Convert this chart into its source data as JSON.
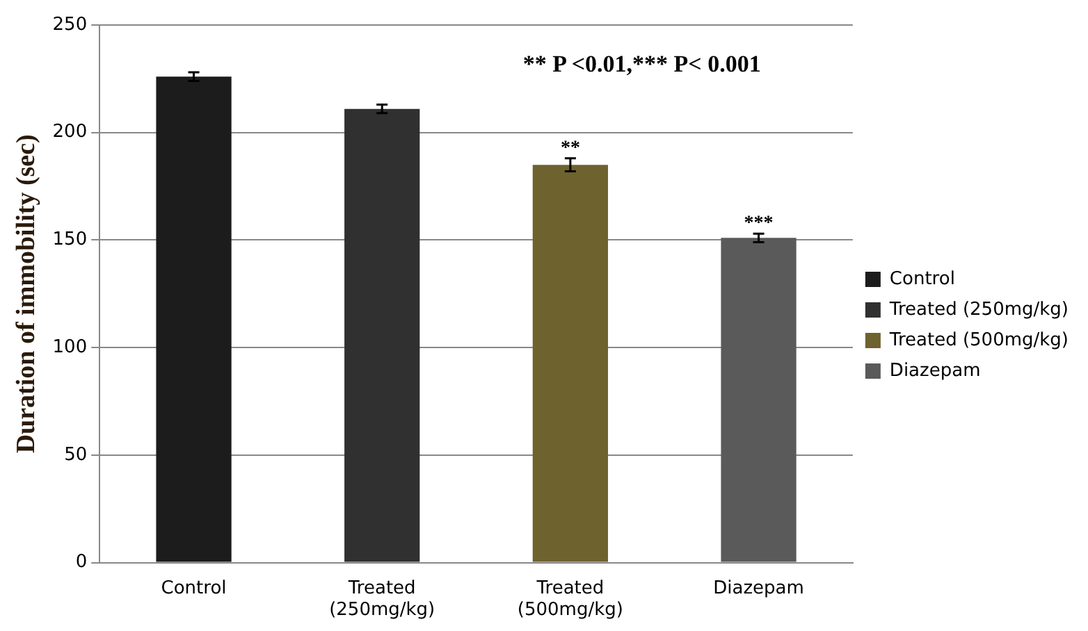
{
  "chart_data": {
    "type": "bar",
    "ylabel": "Duration of immobility (sec)",
    "categories": [
      "Control",
      "Treated (250mg/kg)",
      "Treated (500mg/kg)",
      "Diazepam"
    ],
    "series": [
      {
        "name": "Control",
        "color": "#1c1c1c",
        "values": [
          226,
          null,
          null,
          null
        ],
        "errors": [
          2,
          null,
          null,
          null
        ]
      },
      {
        "name": "Treated (250mg/kg)",
        "color": "#303030",
        "values": [
          null,
          211,
          null,
          null
        ],
        "errors": [
          null,
          2,
          null,
          null
        ]
      },
      {
        "name": "Treated (500mg/kg)",
        "color": "#6e622e",
        "values": [
          null,
          null,
          185,
          null
        ],
        "errors": [
          null,
          null,
          3,
          null
        ]
      },
      {
        "name": "Diazepam",
        "color": "#5a5a5a",
        "values": [
          null,
          null,
          null,
          151
        ],
        "errors": [
          null,
          null,
          null,
          2
        ]
      }
    ],
    "ylim": [
      0,
      250
    ],
    "yticks": [
      0,
      50,
      100,
      150,
      200,
      250
    ],
    "grid": "y",
    "legend": "right",
    "annotations": [
      "** P <0.01,*** P< 0.001",
      {
        "text": "**",
        "x": "Treated (500mg/kg)",
        "y": 188
      },
      {
        "text": "***",
        "x": "Diazepam",
        "y": 153
      }
    ]
  }
}
